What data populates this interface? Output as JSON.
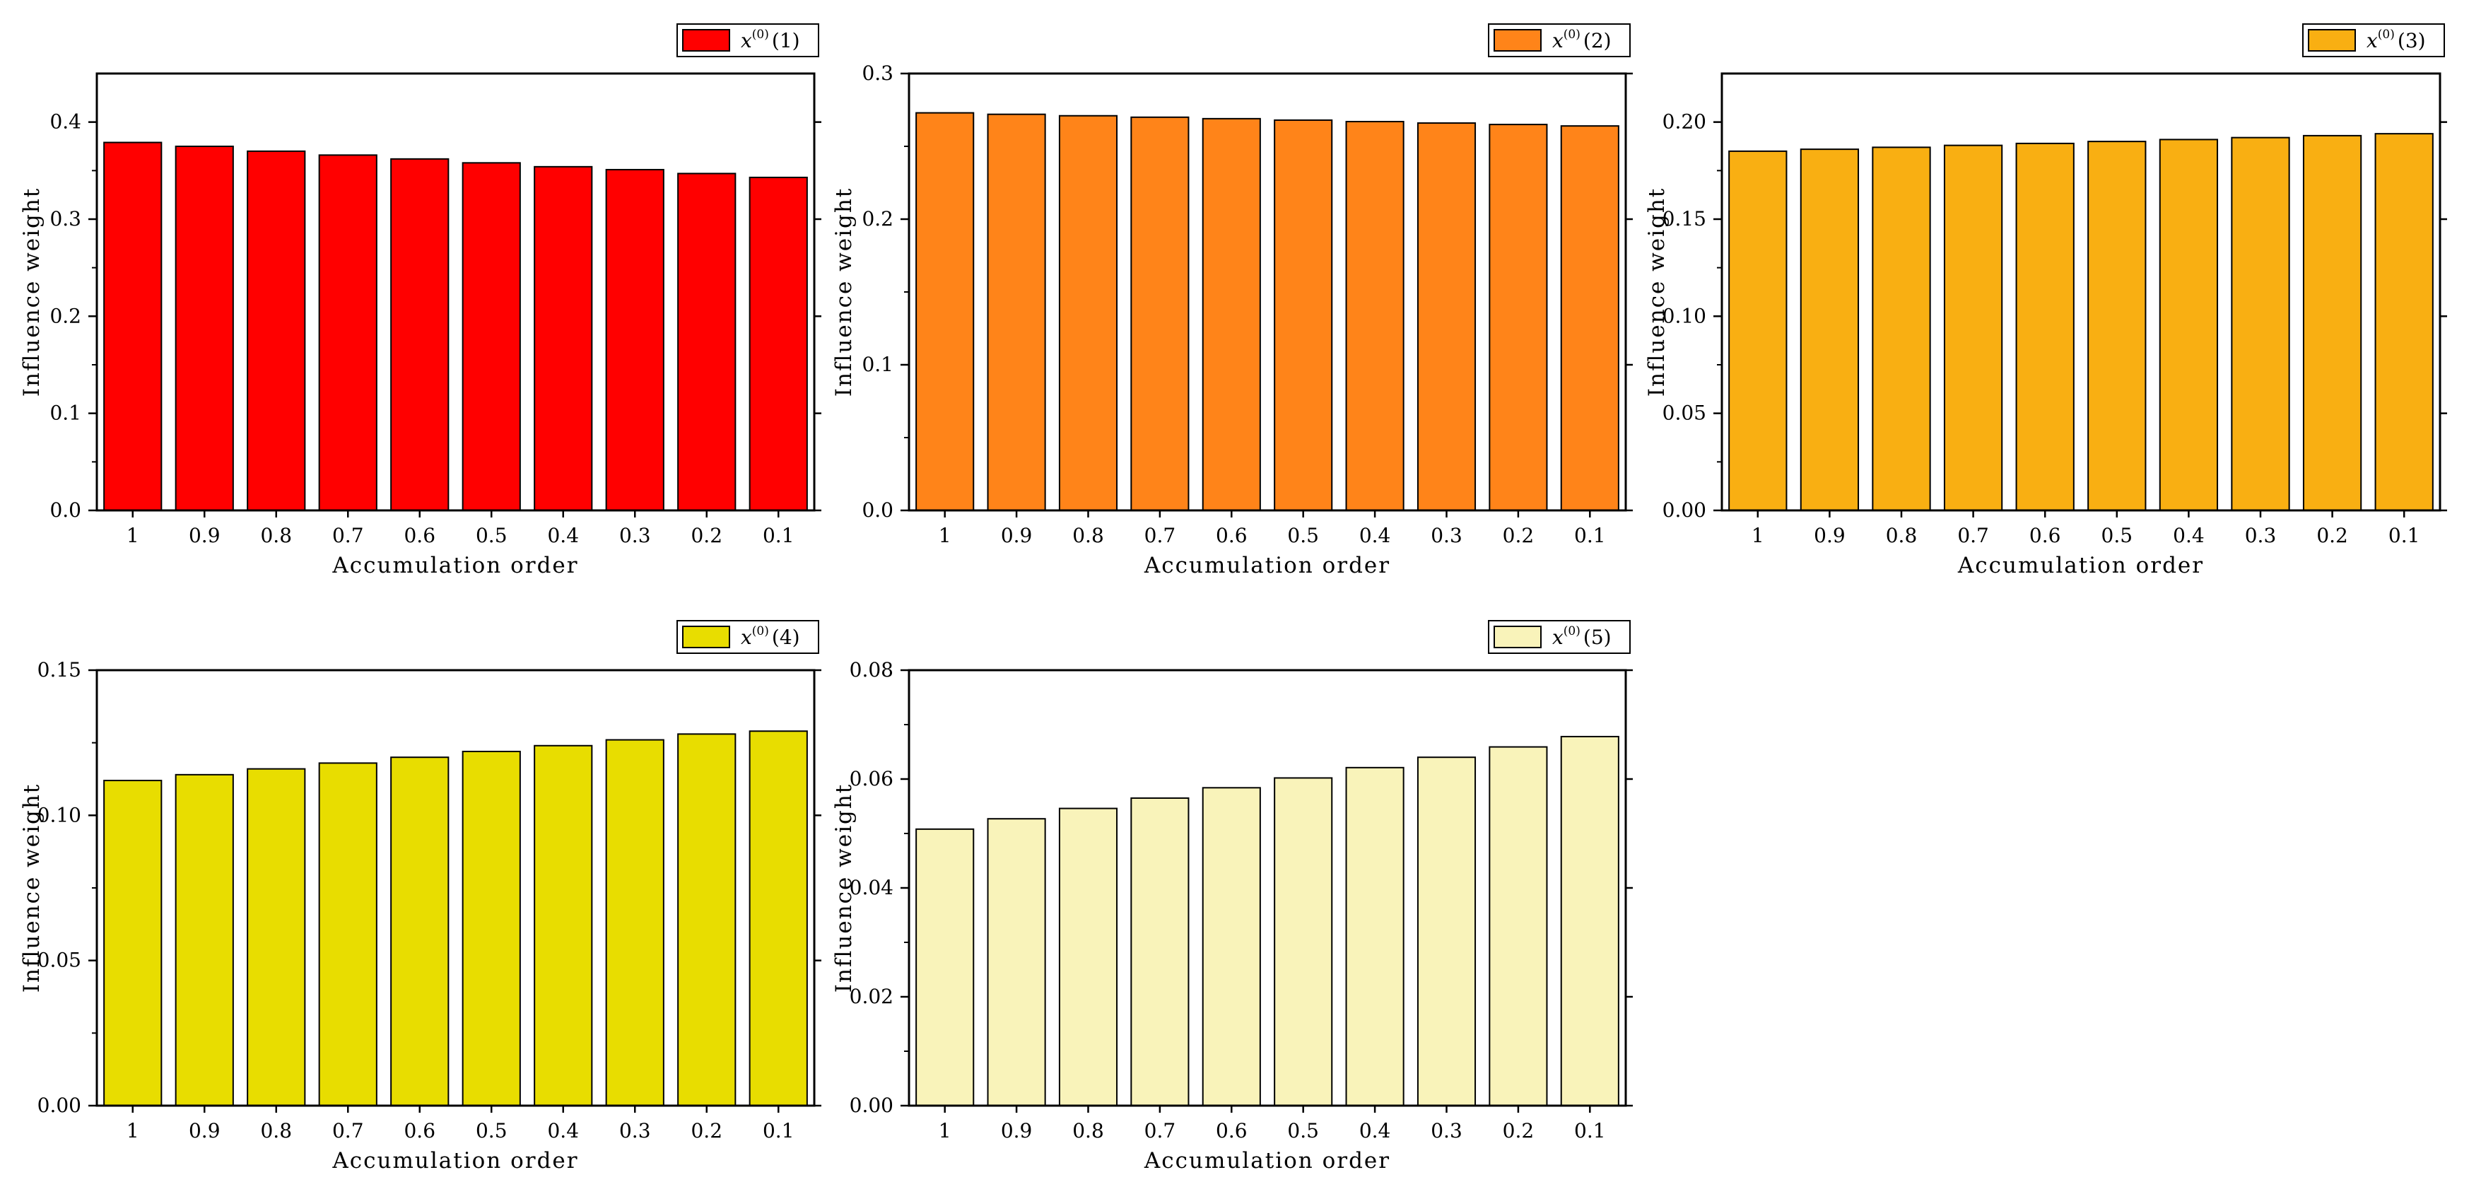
{
  "chart_data": [
    {
      "type": "bar",
      "categories": [
        "1",
        "0.9",
        "0.8",
        "0.7",
        "0.6",
        "0.5",
        "0.4",
        "0.3",
        "0.2",
        "0.1"
      ],
      "series": [
        {
          "name": "x(0)(1)",
          "values": [
            0.379,
            0.375,
            0.37,
            0.366,
            0.362,
            0.358,
            0.354,
            0.351,
            0.347,
            0.343
          ]
        }
      ],
      "legend": {
        "var": "x",
        "sup": "(0)",
        "idx": "(1)"
      },
      "color": "#FF0000",
      "xlabel": "Accumulation order",
      "ylabel": "Influence weight",
      "ylim": [
        0,
        0.45
      ],
      "yticks": [
        0,
        0.1,
        0.2,
        0.3,
        0.4
      ],
      "ytick_labels": [
        "0.0",
        "0.1",
        "0.2",
        "0.3",
        "0.4"
      ],
      "legend_position": "top-right"
    },
    {
      "type": "bar",
      "categories": [
        "1",
        "0.9",
        "0.8",
        "0.7",
        "0.6",
        "0.5",
        "0.4",
        "0.3",
        "0.2",
        "0.1"
      ],
      "series": [
        {
          "name": "x(0)(2)",
          "values": [
            0.273,
            0.272,
            0.271,
            0.27,
            0.269,
            0.268,
            0.267,
            0.266,
            0.265,
            0.264
          ]
        }
      ],
      "legend": {
        "var": "x",
        "sup": "(0)",
        "idx": "(2)"
      },
      "color": "#FF8419",
      "xlabel": "Accumulation order",
      "ylabel": "Influence weight",
      "ylim": [
        0,
        0.3
      ],
      "yticks": [
        0,
        0.1,
        0.2,
        0.3
      ],
      "ytick_labels": [
        "0.0",
        "0.1",
        "0.2",
        "0.3"
      ],
      "legend_position": "top-right"
    },
    {
      "type": "bar",
      "categories": [
        "1",
        "0.9",
        "0.8",
        "0.7",
        "0.6",
        "0.5",
        "0.4",
        "0.3",
        "0.2",
        "0.1"
      ],
      "series": [
        {
          "name": "x(0)(3)",
          "values": [
            0.185,
            0.186,
            0.187,
            0.188,
            0.189,
            0.19,
            0.191,
            0.192,
            0.193,
            0.194
          ]
        }
      ],
      "legend": {
        "var": "x",
        "sup": "(0)",
        "idx": "(3)"
      },
      "color": "#F9AF12",
      "xlabel": "Accumulation order",
      "ylabel": "Influence weight",
      "ylim": [
        0,
        0.225
      ],
      "yticks": [
        0,
        0.05,
        0.1,
        0.15,
        0.2
      ],
      "ytick_labels": [
        "0.00",
        "0.05",
        "0.10",
        "0.15",
        "0.20"
      ],
      "legend_position": "top-right"
    },
    {
      "type": "bar",
      "categories": [
        "1",
        "0.9",
        "0.8",
        "0.7",
        "0.6",
        "0.5",
        "0.4",
        "0.3",
        "0.2",
        "0.1"
      ],
      "series": [
        {
          "name": "x(0)(4)",
          "values": [
            0.112,
            0.114,
            0.116,
            0.118,
            0.12,
            0.122,
            0.124,
            0.126,
            0.128,
            0.129
          ]
        }
      ],
      "legend": {
        "var": "x",
        "sup": "(0)",
        "idx": "(4)"
      },
      "color": "#E8DD00",
      "xlabel": "Accumulation order",
      "ylabel": "Influence weight",
      "ylim": [
        0,
        0.15
      ],
      "yticks": [
        0,
        0.05,
        0.1,
        0.15
      ],
      "ytick_labels": [
        "0.00",
        "0.05",
        "0.10",
        "0.15"
      ],
      "legend_position": "top-right"
    },
    {
      "type": "bar",
      "categories": [
        "1",
        "0.9",
        "0.8",
        "0.7",
        "0.6",
        "0.5",
        "0.4",
        "0.3",
        "0.2",
        "0.1"
      ],
      "series": [
        {
          "name": "x(0)(5)",
          "values": [
            0.0508,
            0.0527,
            0.0546,
            0.0565,
            0.0584,
            0.0602,
            0.0621,
            0.064,
            0.0659,
            0.0678
          ]
        }
      ],
      "legend": {
        "var": "x",
        "sup": "(0)",
        "idx": "(5)"
      },
      "color": "#F9F3BA",
      "xlabel": "Accumulation order",
      "ylabel": "Influence weight",
      "ylim": [
        0,
        0.08
      ],
      "yticks": [
        0,
        0.02,
        0.04,
        0.06,
        0.08
      ],
      "ytick_labels": [
        "0.00",
        "0.02",
        "0.04",
        "0.06",
        "0.08"
      ],
      "legend_position": "top-right"
    }
  ]
}
